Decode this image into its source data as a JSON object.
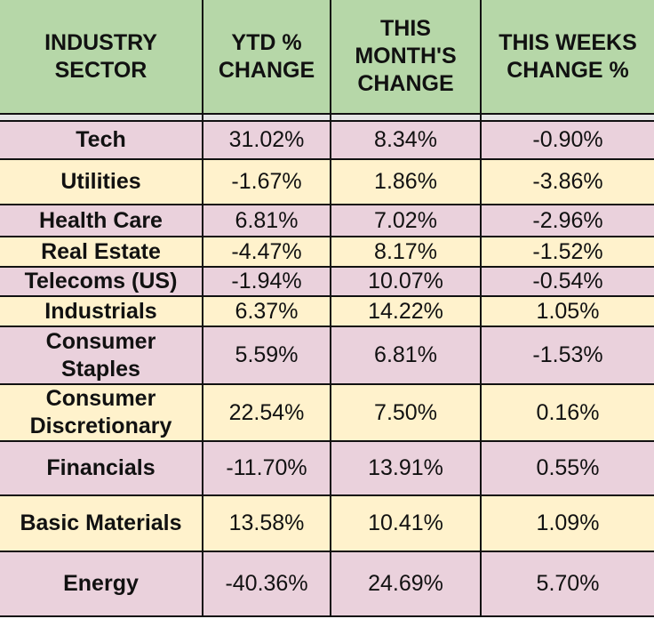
{
  "table": {
    "headers": [
      "INDUSTRY SECTOR",
      "YTD % CHANGE",
      "THIS MONTH'S CHANGE",
      "THIS WEEKS CHANGE %"
    ],
    "header_color": "#b6d7a8",
    "row_colors": [
      "#ead1dc",
      "#fff2cc"
    ],
    "rows": [
      {
        "sector": "Tech",
        "ytd": "31.02%",
        "month": "8.34%",
        "week": "-0.90%"
      },
      {
        "sector": "Utilities",
        "ytd": "-1.67%",
        "month": "1.86%",
        "week": "-3.86%"
      },
      {
        "sector": "Health Care",
        "ytd": "6.81%",
        "month": "7.02%",
        "week": "-2.96%"
      },
      {
        "sector": "Real Estate",
        "ytd": "-4.47%",
        "month": "8.17%",
        "week": "-1.52%"
      },
      {
        "sector": "Telecoms (US)",
        "ytd": "-1.94%",
        "month": "10.07%",
        "week": "-0.54%"
      },
      {
        "sector": "Industrials",
        "ytd": "6.37%",
        "month": "14.22%",
        "week": "1.05%"
      },
      {
        "sector": "Consumer Staples",
        "ytd": "5.59%",
        "month": "6.81%",
        "week": "-1.53%"
      },
      {
        "sector": "Consumer Discretionary",
        "ytd": "22.54%",
        "month": "7.50%",
        "week": "0.16%"
      },
      {
        "sector": "Financials",
        "ytd": "-11.70%",
        "month": "13.91%",
        "week": "0.55%"
      },
      {
        "sector": "Basic Materials",
        "ytd": "13.58%",
        "month": "10.41%",
        "week": "1.09%"
      },
      {
        "sector": "Energy",
        "ytd": "-40.36%",
        "month": "24.69%",
        "week": "5.70%"
      }
    ]
  }
}
